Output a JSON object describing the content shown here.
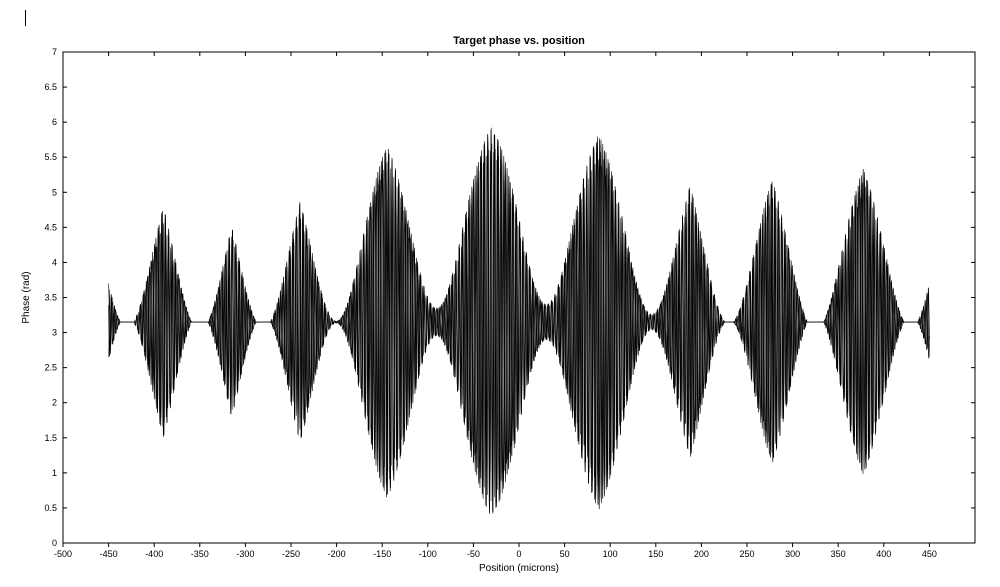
{
  "chart": {
    "type": "line",
    "title": "Target phase vs. position",
    "title_fontsize": 11,
    "title_fontweight": "bold",
    "xlabel": "Position (microns)",
    "ylabel": "Phase (rad)",
    "label_fontsize": 10,
    "tick_fontsize": 9,
    "xlim": [
      -500,
      500
    ],
    "ylim": [
      0,
      7
    ],
    "xticks": [
      -500,
      -450,
      -400,
      -350,
      -300,
      -250,
      -200,
      -150,
      -100,
      -50,
      0,
      50,
      100,
      150,
      200,
      250,
      300,
      350,
      400,
      450
    ],
    "yticks": [
      0,
      0.5,
      1,
      1.5,
      2,
      2.5,
      3,
      3.5,
      4,
      4.5,
      5,
      5.5,
      6,
      6.5,
      7
    ],
    "background_color": "#ffffff",
    "axis_color": "#000000",
    "line_color": "#000000",
    "line_width": 0.6,
    "grid": false,
    "signal": {
      "x_start": -450,
      "x_end": 450,
      "n_points": 900,
      "carrier_period_microns": 3.5,
      "carrier_amplitude": 2.9,
      "envelope_center": 3.15,
      "envelope_depth": 0.98,
      "beat_centers_microns": [
        -430,
        -350,
        -280,
        -200,
        -90,
        30,
        145,
        230,
        325,
        430
      ],
      "beat_halfwidth_microns": 40
    }
  }
}
